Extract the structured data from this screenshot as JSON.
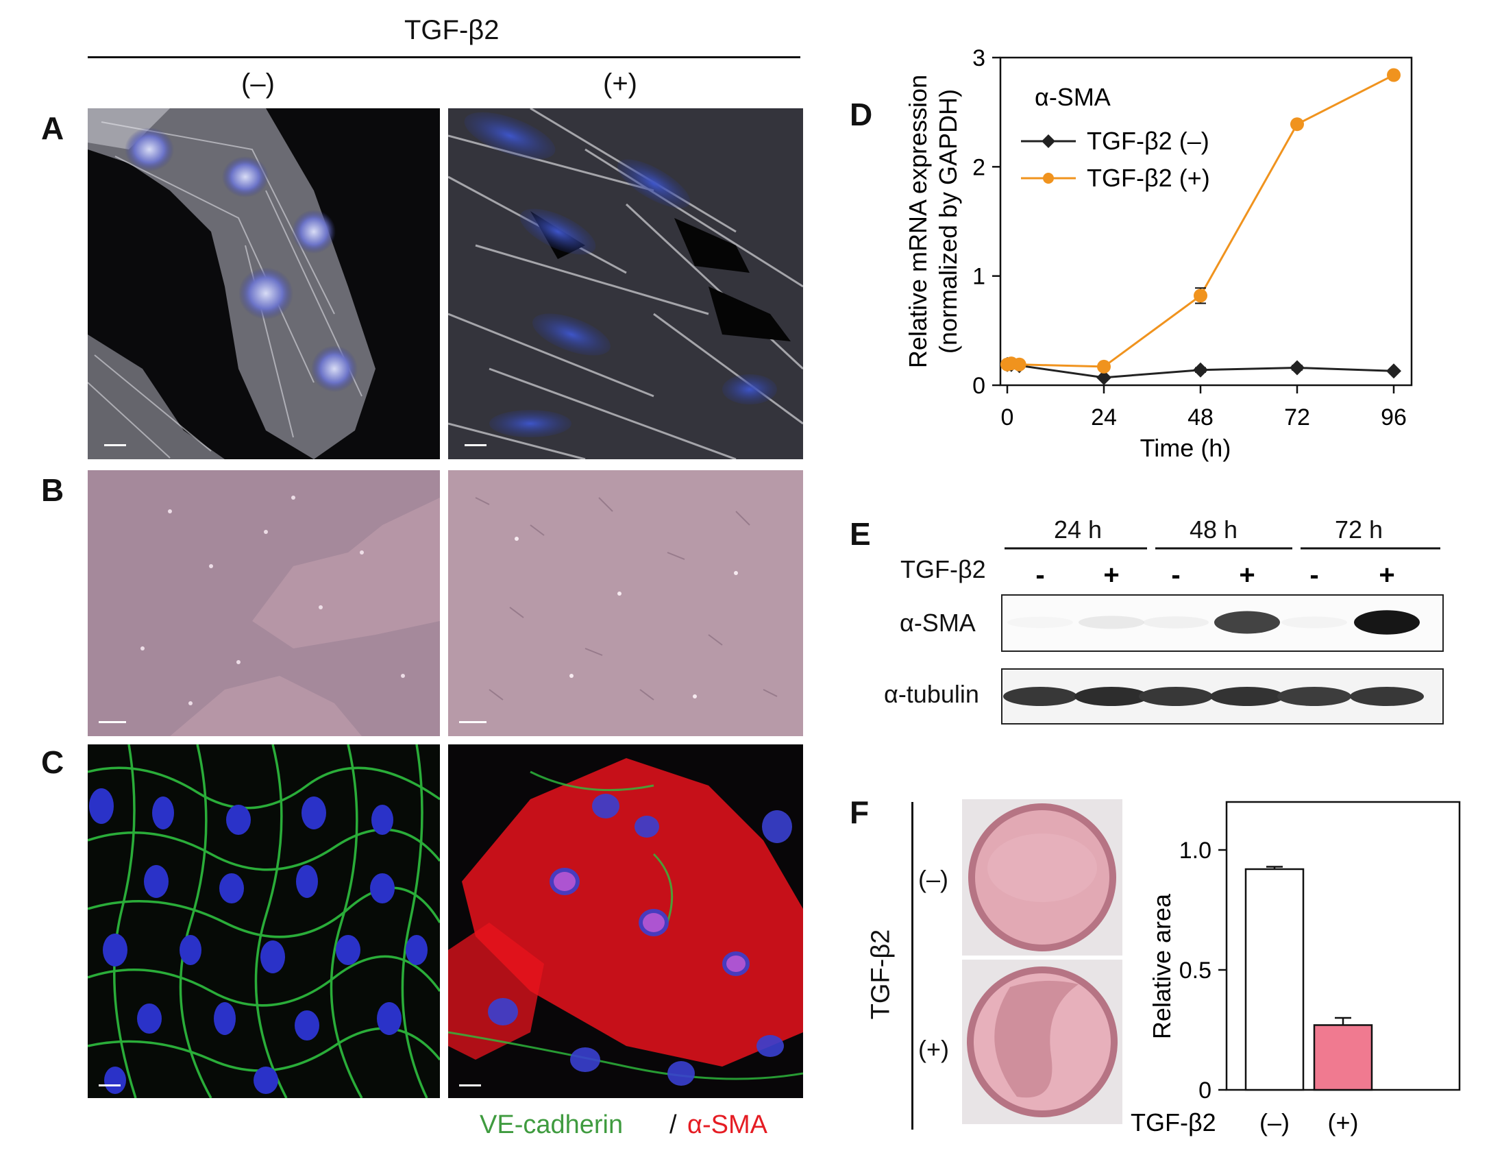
{
  "header": {
    "treatment": "TGF-β2",
    "minus": "(–)",
    "plus": "(+)"
  },
  "panel_labels": {
    "A": "A",
    "B": "B",
    "C": "C",
    "D": "D",
    "E": "E",
    "F": "F"
  },
  "panelC_legend": {
    "left": "VE-cadherin",
    "sep": "/",
    "right": "α-SMA",
    "left_color": "#3f9b3f",
    "right_color": "#e51c23"
  },
  "chart_data": [
    {
      "id": "D",
      "type": "line",
      "ylabel": "Relative mRNA expression",
      "ylabel2": "(normalized by GAPDH)",
      "xlabel": "Time (h)",
      "xlim": [
        0,
        96
      ],
      "ylim": [
        0,
        3
      ],
      "xticks": [
        0,
        24,
        48,
        72,
        96
      ],
      "yticks": [
        0,
        1,
        2,
        3
      ],
      "legend_title": "α-SMA",
      "legend_position": "top-left",
      "series": [
        {
          "name": "TGF-β2 (–)",
          "color": "#222222",
          "marker": "diamond",
          "x": [
            0,
            1,
            3,
            24,
            48,
            72,
            96
          ],
          "y": [
            0.19,
            0.19,
            0.18,
            0.07,
            0.14,
            0.16,
            0.13
          ],
          "err": [
            0.01,
            0.01,
            0.02,
            0.01,
            0.02,
            0.02,
            0.01
          ]
        },
        {
          "name": "TGF-β2 (+)",
          "color": "#f0931e",
          "marker": "circle",
          "x": [
            0,
            1,
            3,
            24,
            48,
            72,
            96
          ],
          "y": [
            0.19,
            0.2,
            0.19,
            0.17,
            0.82,
            2.39,
            2.84
          ],
          "err": [
            0.01,
            0.01,
            0.01,
            0.01,
            0.07,
            0.03,
            0.03
          ]
        }
      ]
    },
    {
      "id": "F",
      "type": "bar",
      "ylabel": "Relative area",
      "xlabel": "TGF-β2",
      "categories": [
        "(–)",
        "(+)"
      ],
      "values": [
        0.92,
        0.27
      ],
      "err": [
        0.01,
        0.03
      ],
      "colors": [
        "#ffffff",
        "#f07a90"
      ],
      "ylim": [
        0,
        1.2
      ],
      "yticks": [
        0,
        0.5,
        1.0
      ],
      "ytick_labels": [
        "0",
        "0.5",
        "1.0"
      ]
    }
  ],
  "westernE": {
    "times": [
      "24 h",
      "48 h",
      "72 h"
    ],
    "treatment_label": "TGF-β2",
    "lanes": [
      "-",
      "+",
      "-",
      "+",
      "-",
      "+"
    ],
    "rows": [
      "α-SMA",
      "α-tubulin"
    ],
    "sma_intensity": [
      0.03,
      0.15,
      0.08,
      0.85,
      0.05,
      0.97
    ],
    "tubulin_intensity": [
      0.8,
      0.85,
      0.8,
      0.82,
      0.78,
      0.8
    ]
  },
  "panelF": {
    "vertical_label": "TGF-β2",
    "dish_minus": "(–)",
    "dish_plus": "(+)"
  }
}
